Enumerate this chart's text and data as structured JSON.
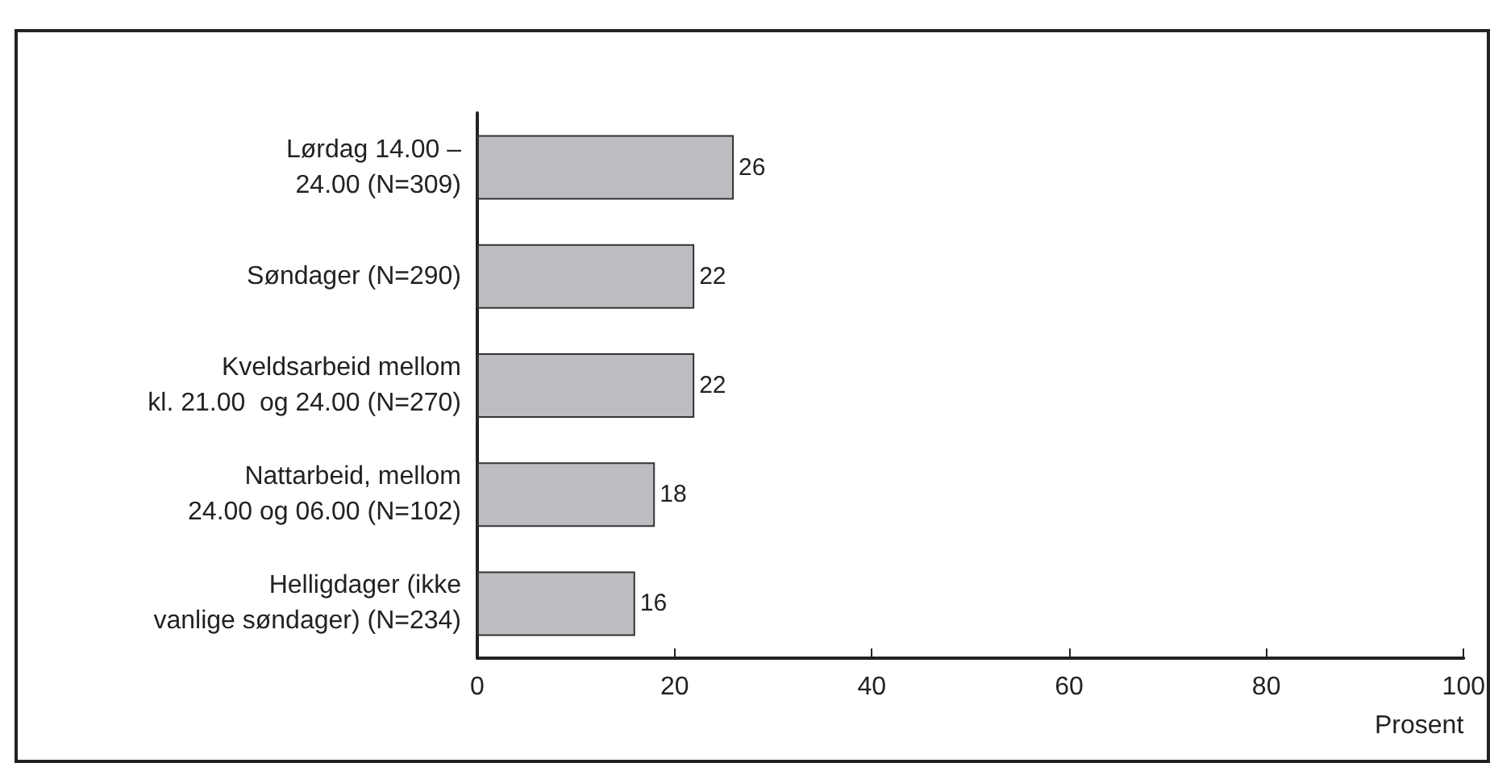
{
  "chart_data": {
    "type": "bar",
    "orientation": "horizontal",
    "categories": [
      "Lørdag 14.00 –\n24.00 (N=309)",
      "Søndager (N=290)",
      "Kveldsarbeid mellom\nkl. 21.00  og 24.00 (N=270)",
      "Nattarbeid, mellom\n24.00 og 06.00 (N=102)",
      "Helligdager (ikke\nvanlige søndager) (N=234)"
    ],
    "values": [
      26,
      22,
      22,
      18,
      16
    ],
    "color": "#bcbdc0",
    "data_labels": true,
    "xlabel": "Prosent",
    "xlim": [
      0,
      100
    ],
    "xticks": [
      0,
      20,
      40,
      60,
      80,
      100
    ],
    "grid": false
  }
}
